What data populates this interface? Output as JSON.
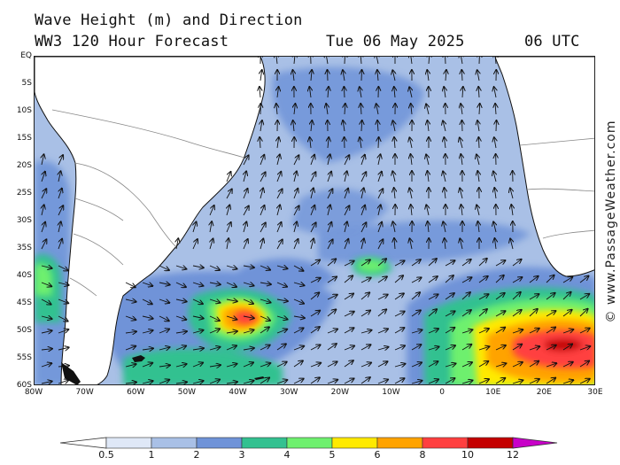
{
  "header": {
    "title": "Wave Height (m) and Direction",
    "model": "WW3 120 Hour Forecast",
    "date": "Tue 06 May 2025",
    "time": "06 UTC"
  },
  "brand": "© www.PassageWeather.com",
  "axes": {
    "lat_labels": [
      "EQ",
      "5S",
      "10S",
      "15S",
      "20S",
      "25S",
      "30S",
      "35S",
      "40S",
      "45S",
      "50S",
      "55S",
      "60S"
    ],
    "lon_labels": [
      "80W",
      "70W",
      "60W",
      "50W",
      "40W",
      "30W",
      "20W",
      "10W",
      "0",
      "10E",
      "20E",
      "30E"
    ]
  },
  "colorbar": {
    "labels": [
      "0.5",
      "1",
      "2",
      "3",
      "4",
      "5",
      "6",
      "8",
      "10",
      "12"
    ],
    "colors": [
      "#dfe8f7",
      "#a9c0e6",
      "#6f93d8",
      "#33c190",
      "#6ef06e",
      "#ffea00",
      "#ffa300",
      "#ff3f3f",
      "#c40000",
      "#c800c8"
    ]
  },
  "colors": {
    "land": "#ffffff",
    "ocean_low": "#a9c0e6",
    "ocean_mid": "#6f93d8"
  }
}
